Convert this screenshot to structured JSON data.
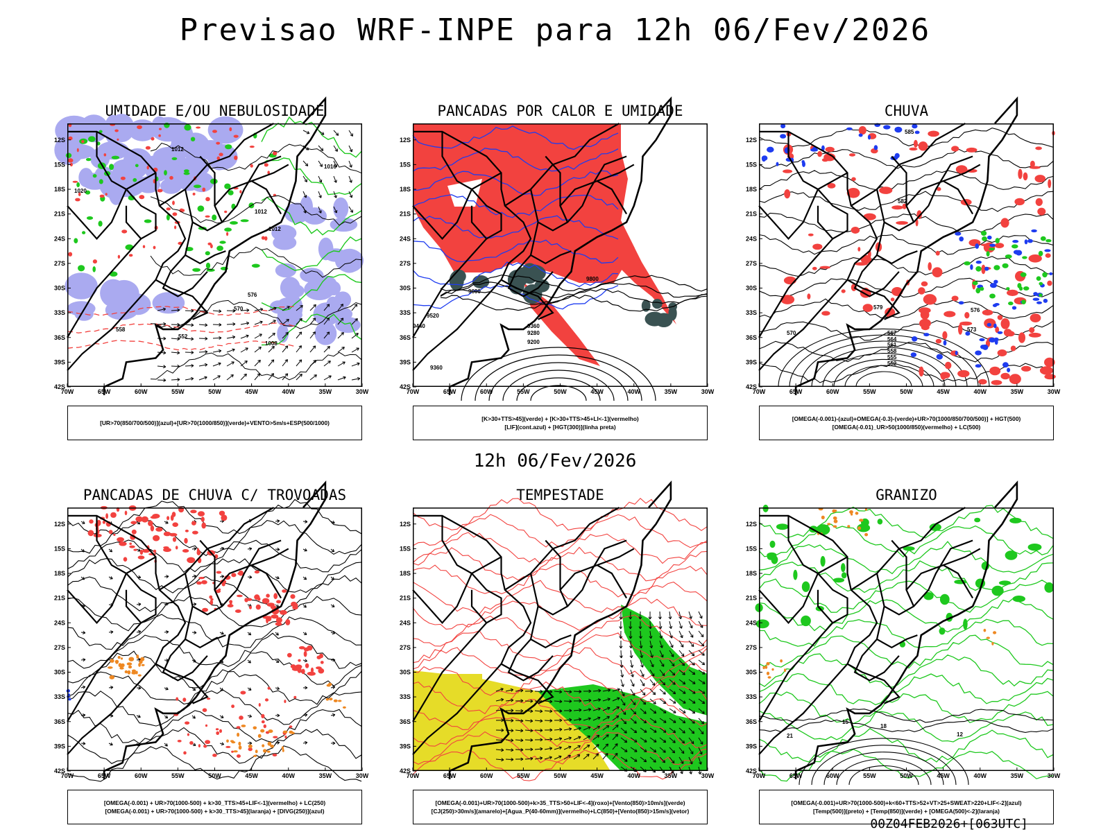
{
  "header": {
    "title": "Previsao WRF-INPE  para 12h 06/Fev/2026",
    "mid_time": "12h 06/Fev/2026",
    "run_id": "00Z04FEB2026+[063UTC]"
  },
  "axes": {
    "lat_labels": [
      "12S",
      "15S",
      "18S",
      "21S",
      "24S",
      "27S",
      "30S",
      "33S",
      "36S",
      "39S",
      "42S"
    ],
    "lon_labels": [
      "70W",
      "65W",
      "60W",
      "55W",
      "50W",
      "45W",
      "40W",
      "35W",
      "30W"
    ]
  },
  "panels": [
    {
      "title": "UMIDADE E/OU NEBULOSIDADE",
      "legend": [
        "[UR>70(850/700/500)](azul)+[UR>70(1000/850)](verde)+VENTO>5m/s+ESP(500/1000)"
      ],
      "contour_labels": [
        "1012",
        "1012",
        "1016",
        "1020",
        "1012",
        "1008",
        "570",
        "558",
        "552",
        "576"
      ]
    },
    {
      "title": "PANCADAS POR CALOR E UMIDADE",
      "legend": [
        "[K>30+TTS>45](verde) + [K>30+TTS>45+LI<-1](vermelho)",
        "[LIF](cont.azul) + [HGT(300)](linha preta)"
      ],
      "contour_labels": [
        "9600",
        "9520",
        "9440",
        "9360",
        "9280",
        "9200",
        "9800",
        "9360"
      ]
    },
    {
      "title": "CHUVA",
      "legend": [
        "[OMEGA(-0.001)-(azul)+OMEGA(-0.3)-(verde)+UR>70(1000/850/700/500)] + HGT(500)",
        "[OMEGA(-0.01)_UR>50(1000/850)(vermelho) + LC(500)"
      ],
      "contour_labels": [
        "585",
        "582",
        "579",
        "576",
        "573",
        "570",
        "567",
        "564",
        "561",
        "558",
        "555",
        "552"
      ]
    },
    {
      "title": "PANCADAS DE CHUVA C/ TROVOADAS",
      "legend": [
        "[OMEGA(-0.001) + UR>70(1000-500) + k>30_TTS>45+LIF<-1](vermelho) + LC(250)",
        "[OMEGA(-0.001) + UR>70(1000-500) + k>30_TTS>45](laranja) + [DIVG(250)](azul)"
      ],
      "contour_labels": []
    },
    {
      "title": "TEMPESTADE",
      "legend": [
        "[OMEGA(-0.001)+UR>70(1000-500)+k>35_TTS>50+LIF<-4](roxo)+[Vento(850)>10m/s](verde)",
        "[CJ(250)>30m/s](amarelo)+[Agua_P(40-60mm)](vermelho)+LC(850)+[Vento(850)>15m/s](vetor)"
      ],
      "contour_labels": []
    },
    {
      "title": "GRANIZO",
      "legend": [
        "[OMEGA(-0.001)+UR>70(1000-500)+k<60+TTS>52+VT>25+SWEAT>220+LIF<-2](azul)",
        "[Temp(500)](preto) + [Temp(850)](verde) + [OMEGA(500)<-2](laranja)"
      ],
      "contour_labels": [
        "15",
        "18",
        "21",
        "12"
      ]
    }
  ],
  "colors": {
    "red": "#f2423f",
    "green": "#1ec81e",
    "blue": "#1e3cf0",
    "purple": "#9999ee",
    "orange": "#ee8822",
    "yellow": "#e6dc28",
    "teal": "#3a5252"
  }
}
